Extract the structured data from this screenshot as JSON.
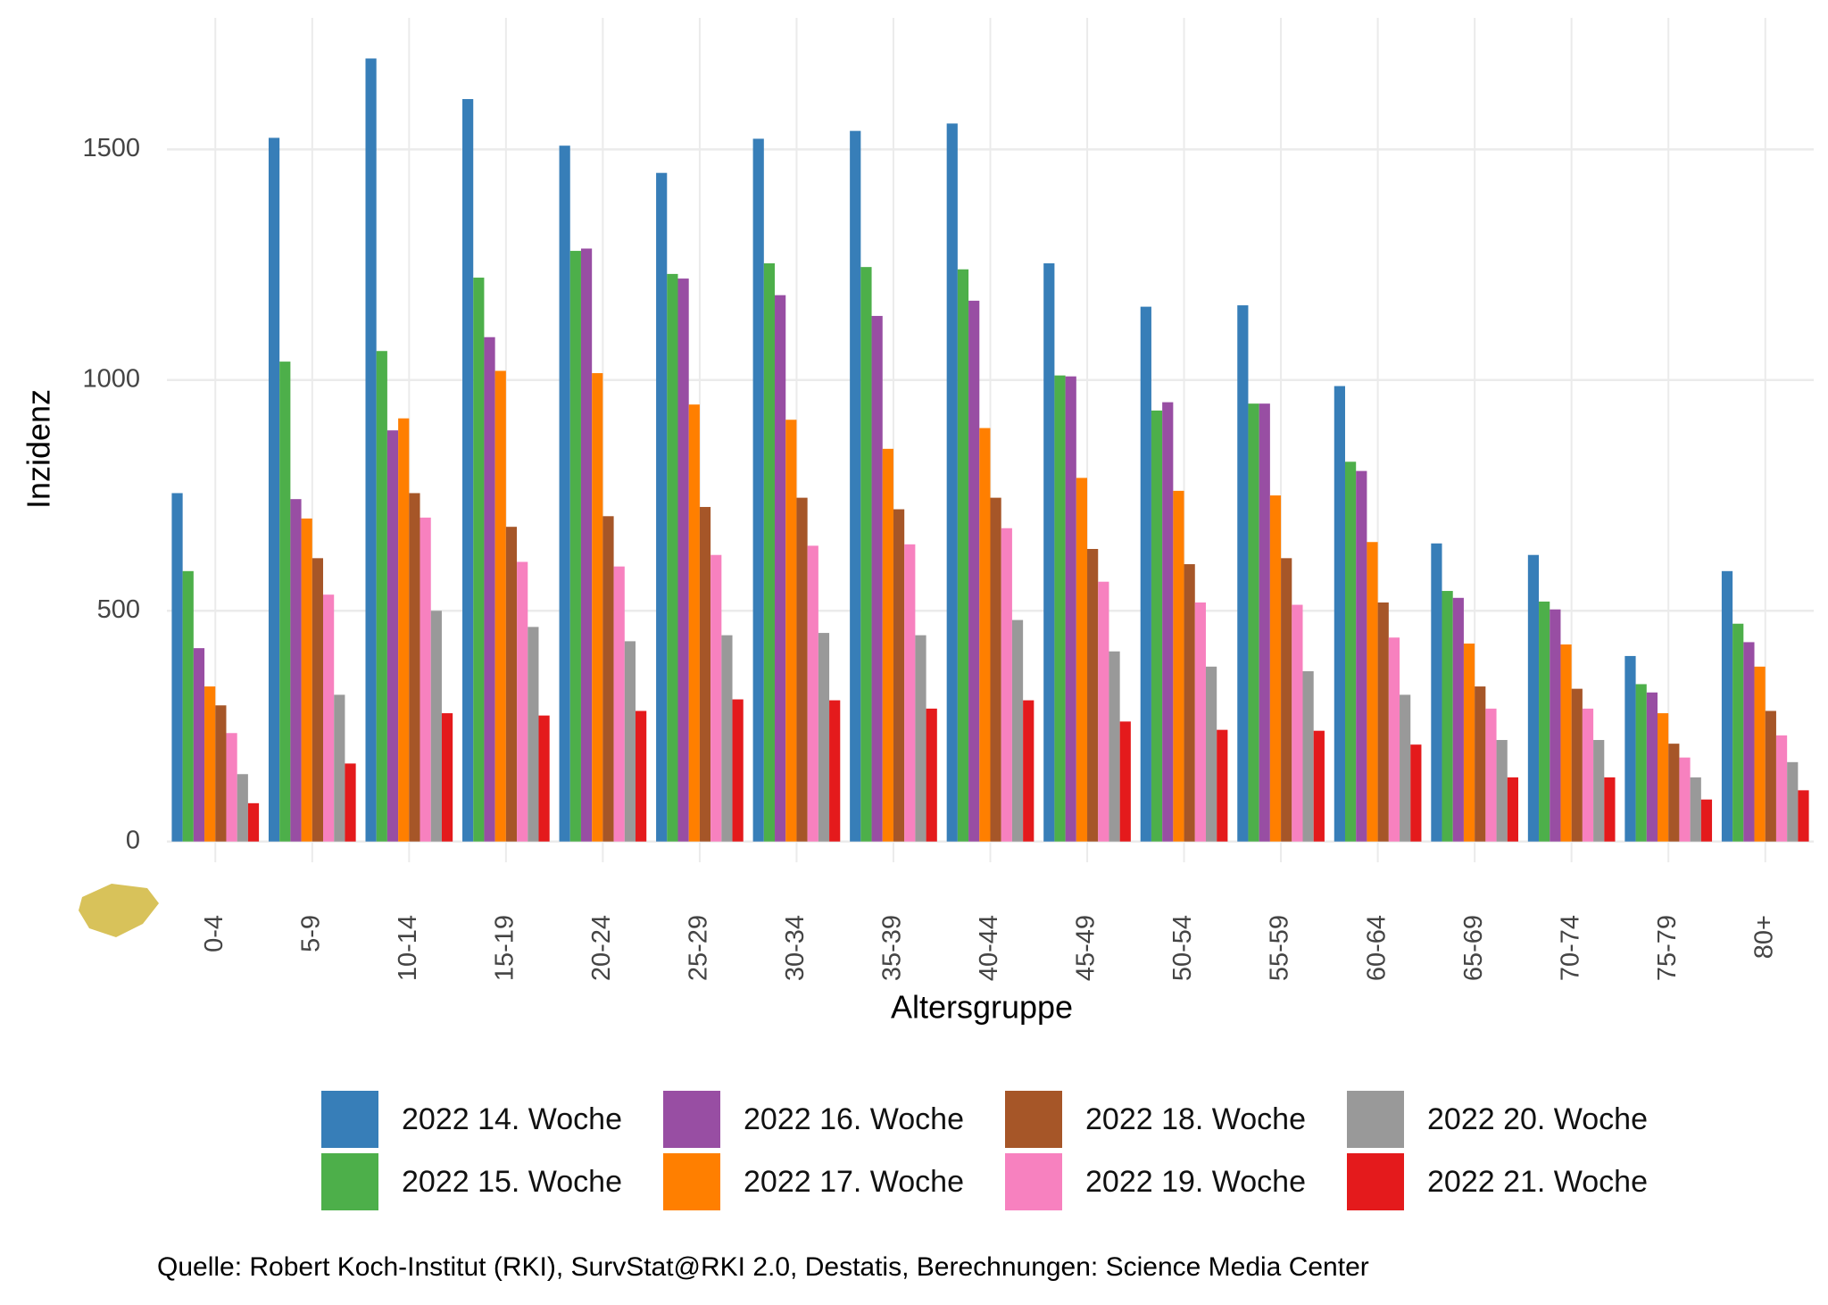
{
  "chart_data": {
    "type": "bar",
    "x_label": "Altersgruppe",
    "y_label": "Inzidenz",
    "caption": "Quelle: Robert Koch-Institut (RKI), SurvStat@RKI 2.0, Destatis, Berechnungen: Science Media Center",
    "categories": [
      "0-4",
      "5-9",
      "10-14",
      "15-19",
      "20-24",
      "25-29",
      "30-34",
      "35-39",
      "40-44",
      "45-49",
      "50-54",
      "55-59",
      "60-64",
      "65-69",
      "70-74",
      "75-79",
      "80+"
    ],
    "ylim": [
      -45,
      1785
    ],
    "yticks": [
      0,
      500,
      1000,
      1500
    ],
    "grid": true,
    "series": [
      {
        "name": "2022 14. Woche",
        "color": "#377eb8",
        "values": [
          755,
          1525,
          1697,
          1609,
          1508,
          1449,
          1523,
          1540,
          1556,
          1253,
          1159,
          1162,
          987,
          646,
          621,
          402,
          586
        ]
      },
      {
        "name": "2022 15. Woche",
        "color": "#4daf4a",
        "values": [
          586,
          1040,
          1063,
          1222,
          1280,
          1230,
          1253,
          1245,
          1240,
          1010,
          934,
          949,
          823,
          543,
          520,
          341,
          472
        ]
      },
      {
        "name": "2022 16. Woche",
        "color": "#984ea3",
        "values": [
          419,
          742,
          891,
          1093,
          1285,
          1220,
          1184,
          1139,
          1172,
          1008,
          952,
          949,
          803,
          528,
          503,
          323,
          432
        ]
      },
      {
        "name": "2022 17. Woche",
        "color": "#ff7f00",
        "values": [
          336,
          700,
          917,
          1020,
          1015,
          947,
          914,
          851,
          896,
          788,
          760,
          750,
          649,
          429,
          427,
          278,
          379
        ]
      },
      {
        "name": "2022 18. Woche",
        "color": "#a65628",
        "values": [
          295,
          614,
          755,
          682,
          705,
          725,
          745,
          720,
          745,
          634,
          601,
          614,
          518,
          336,
          331,
          212,
          283
        ]
      },
      {
        "name": "2022 19. Woche",
        "color": "#f781bf",
        "values": [
          235,
          535,
          702,
          606,
          596,
          621,
          641,
          644,
          679,
          563,
          518,
          513,
          442,
          288,
          288,
          182,
          230
        ]
      },
      {
        "name": "2022 20. Woche",
        "color": "#999999",
        "values": [
          146,
          318,
          500,
          465,
          434,
          447,
          452,
          447,
          480,
          412,
          379,
          369,
          318,
          220,
          220,
          139,
          172
        ]
      },
      {
        "name": "2022 21. Woche",
        "color": "#e41a1c",
        "values": [
          83,
          169,
          278,
          273,
          283,
          308,
          306,
          288,
          306,
          260,
          242,
          240,
          210,
          139,
          139,
          91,
          111
        ]
      }
    ]
  }
}
